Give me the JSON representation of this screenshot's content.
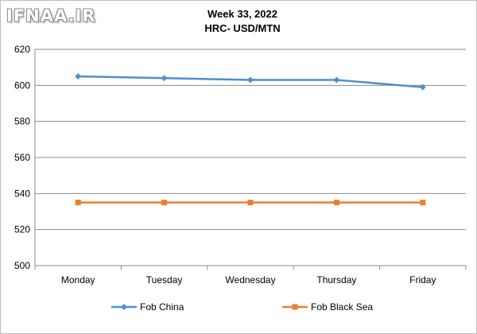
{
  "watermark": "IFNAA.IR",
  "colors": {
    "series1": "#4f8fd0",
    "series2": "#ed7d31",
    "grid": "#8c8c8c",
    "axis": "#8c8c8c"
  },
  "chart_data": {
    "type": "line",
    "title": "Week 33, 2022",
    "subtitle": "HRC- USD/MTN",
    "categories": [
      "Monday",
      "Tuesday",
      "Wednesday",
      "Thursday",
      "Friday"
    ],
    "series": [
      {
        "name": "Fob China",
        "marker": "diamond",
        "values": [
          605,
          604,
          603,
          603,
          599
        ]
      },
      {
        "name": "Fob Black Sea",
        "marker": "square",
        "values": [
          535,
          535,
          535,
          535,
          535
        ]
      }
    ],
    "ylim": [
      500,
      620
    ],
    "yticks": [
      500,
      520,
      540,
      560,
      580,
      600,
      620
    ],
    "grid": true,
    "legend_position": "bottom"
  }
}
